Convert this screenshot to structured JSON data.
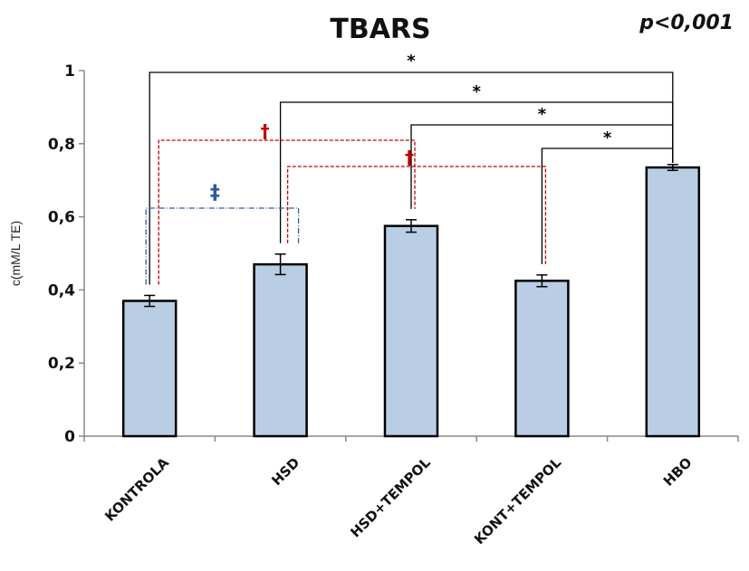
{
  "chart_data": {
    "type": "bar",
    "title": "TBARS",
    "annotation": "p<0,001",
    "xlabel": "",
    "ylabel": "c(mM/L TE)",
    "ylim": [
      0,
      1
    ],
    "yticks": [
      "0",
      "0,2",
      "0,4",
      "0,6",
      "0,8",
      "1"
    ],
    "categories": [
      "KONTROLA",
      "HSD",
      "HSD+TEMPOL",
      "KONT+TEMPOL",
      "HBO"
    ],
    "values": [
      0.37,
      0.47,
      0.575,
      0.425,
      0.735
    ],
    "errors": [
      0.015,
      0.028,
      0.017,
      0.016,
      0.008
    ],
    "bar_color": "#b9cde5",
    "grid": false,
    "legend": "none",
    "significance": [
      {
        "from": "KONTROLA",
        "to": "HBO",
        "symbol": "*",
        "color": "#000000"
      },
      {
        "from": "HSD",
        "to": "HBO",
        "symbol": "*",
        "color": "#000000"
      },
      {
        "from": "HSD+TEMPOL",
        "to": "HBO",
        "symbol": "*",
        "color": "#000000"
      },
      {
        "from": "KONT+TEMPOL",
        "to": "HBO",
        "symbol": "*",
        "color": "#000000"
      },
      {
        "from": "KONTROLA",
        "to": "HSD+TEMPOL",
        "symbol": "†",
        "color": "#c00000"
      },
      {
        "from": "HSD",
        "to": "KONT+TEMPOL",
        "symbol": "†",
        "color": "#c00000"
      },
      {
        "from": "KONTROLA",
        "to": "HSD",
        "symbol": "‡",
        "color": "#2e5c9a"
      }
    ]
  }
}
